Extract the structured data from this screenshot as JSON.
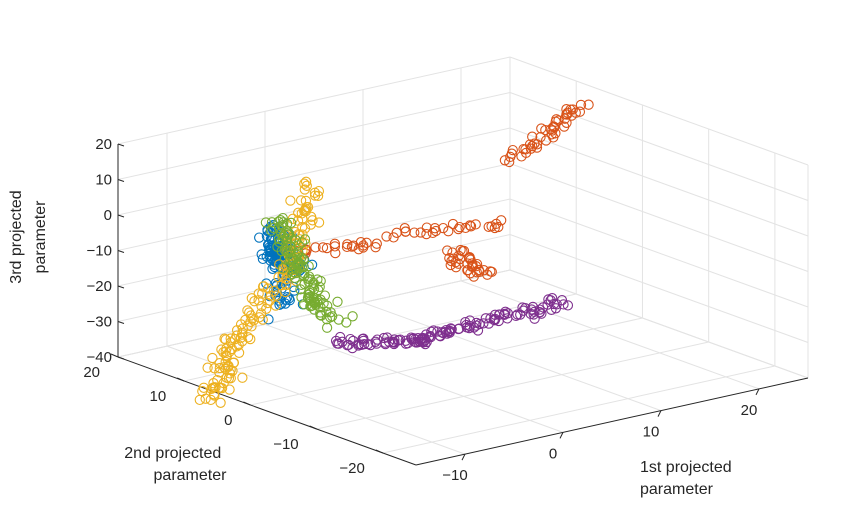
{
  "chart_data": {
    "type": "scatter",
    "title": "",
    "xlabel": [
      "1st projected",
      "parameter"
    ],
    "ylabel": [
      "2nd projected",
      "parameter"
    ],
    "zlabel": [
      "3rd projected",
      "parameter"
    ],
    "xlim": [
      -15,
      25
    ],
    "ylim": [
      -25,
      20
    ],
    "zlim": [
      -40,
      20
    ],
    "x_ticks": [
      -10,
      0,
      10,
      20
    ],
    "y_ticks": [
      20,
      10,
      0,
      -10,
      -20
    ],
    "z_ticks": [
      20,
      10,
      0,
      -10,
      -20,
      -30,
      -40
    ],
    "x_tick_labels": [
      "−10",
      "0",
      "10",
      "20"
    ],
    "y_tick_labels": [
      "20",
      "10",
      "0",
      "−10",
      "−20"
    ],
    "z_tick_labels": [
      "20",
      "10",
      "0",
      "−10",
      "−20",
      "−30",
      "−40"
    ],
    "grid": true,
    "marker": "open-circle",
    "series": [
      {
        "color": "#0072BD",
        "segments": [
          {
            "from": [
              -12,
              0,
              -5
            ],
            "to": [
              -12,
              0,
              -15
            ],
            "n": 30,
            "noise": 2
          },
          {
            "from": [
              -12,
              0,
              0
            ],
            "to": [
              -9,
              5,
              -4
            ],
            "n": 45,
            "noise": 1.3
          },
          {
            "from": [
              -8,
              6,
              -5
            ],
            "to": [
              -6,
              6,
              -12
            ],
            "n": 30,
            "noise": 1.5
          },
          {
            "from": [
              -4,
              13,
              -5
            ],
            "to": [
              -6,
              8,
              -10
            ],
            "n": 45,
            "noise": 1.5
          }
        ]
      },
      {
        "color": "#D95319",
        "segments": [
          {
            "from": [
              -4,
              9,
              -10
            ],
            "to": [
              3,
              7,
              -10
            ],
            "n": 22,
            "noise": 1
          },
          {
            "from": [
              2,
              4,
              -5
            ],
            "to": [
              11,
              0,
              -5
            ],
            "n": 28,
            "noise": 1
          },
          {
            "from": [
              6,
              0,
              -10
            ],
            "to": [
              9,
              0,
              -18
            ],
            "n": 35,
            "noise": 1.5
          },
          {
            "from": [
              15,
              4,
              8
            ],
            "to": [
              24,
              8,
              15
            ],
            "n": 45,
            "noise": 1.2
          }
        ]
      },
      {
        "color": "#EDB120",
        "segments": [
          {
            "from": [
              -17,
              3,
              -40
            ],
            "to": [
              -16,
              1,
              -22
            ],
            "n": 55,
            "noise": 1.8
          },
          {
            "from": [
              -16,
              1,
              -22
            ],
            "to": [
              -9,
              3,
              -8
            ],
            "n": 50,
            "noise": 1.8
          },
          {
            "from": [
              -9,
              3,
              -8
            ],
            "to": [
              0,
              13,
              4
            ],
            "n": 55,
            "noise": 1.5
          }
        ]
      },
      {
        "color": "#7E2F8E",
        "segments": [
          {
            "from": [
              -7,
              -1,
              -27
            ],
            "to": [
              1,
              -3,
              -29
            ],
            "n": 50,
            "noise": 1.2
          },
          {
            "from": [
              0,
              -2,
              -30
            ],
            "to": [
              13,
              -6,
              -24
            ],
            "n": 85,
            "noise": 1.5
          }
        ]
      },
      {
        "color": "#77AC30",
        "segments": [
          {
            "from": [
              -7,
              8,
              2
            ],
            "to": [
              -5,
              5,
              -20
            ],
            "n": 95,
            "noise": 1.4
          },
          {
            "from": [
              -8,
              2,
              -15
            ],
            "to": [
              -6,
              0,
              -22
            ],
            "n": 28,
            "noise": 1.5
          }
        ]
      }
    ]
  }
}
